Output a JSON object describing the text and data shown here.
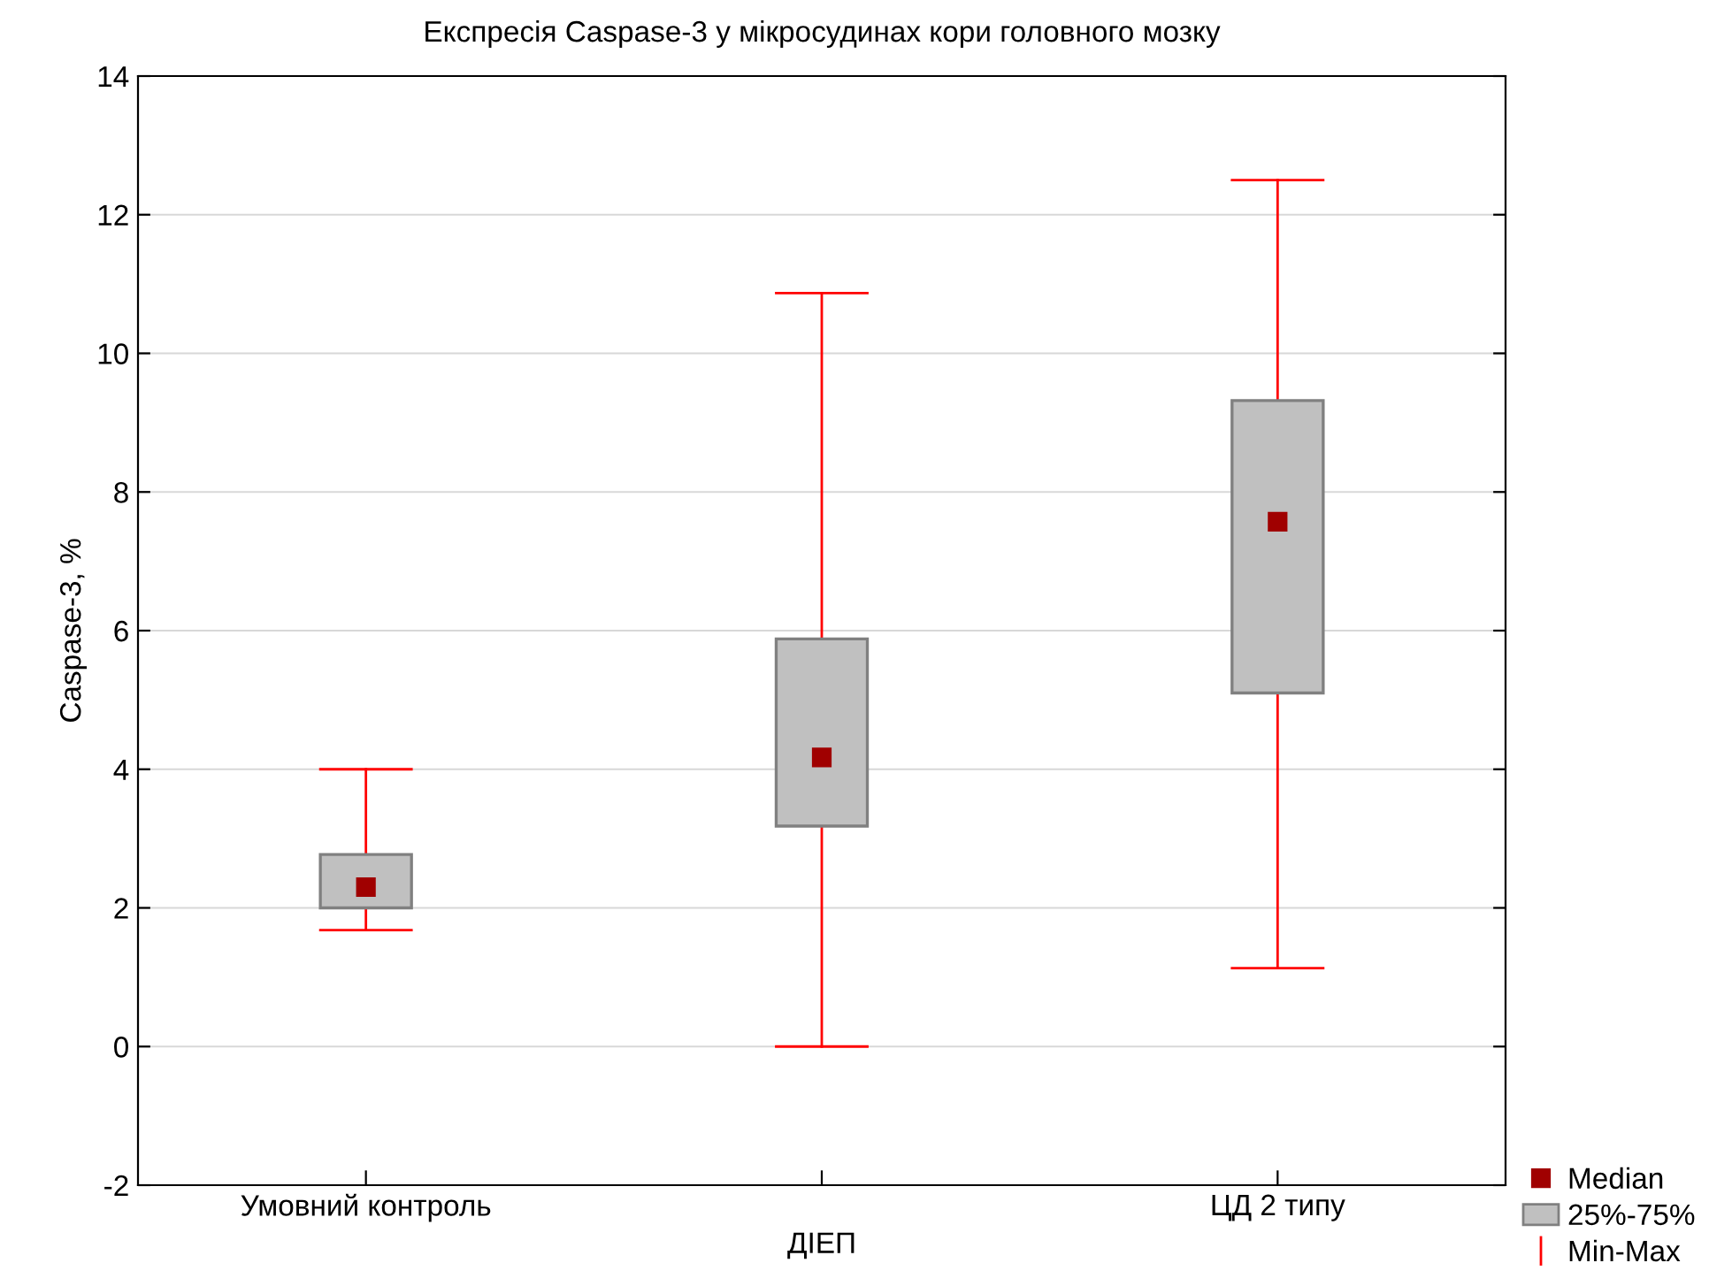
{
  "chart_data": {
    "type": "box",
    "title": "Експресія Caspase-3 у мікросудинах кори головного мозку",
    "xlabel": "ДІЕП",
    "ylabel": "Caspase-3, %",
    "categories": [
      "Умовний контроль",
      null,
      "ЦД 2 типу"
    ],
    "series": [
      {
        "name": "25%-75%",
        "color": "#c0c0c0",
        "boxes": [
          {
            "low": 1.68,
            "q1": 2.0,
            "median": 2.3,
            "q3": 2.77,
            "high": 4.0
          },
          {
            "low": 0.0,
            "q1": 3.18,
            "median": 4.17,
            "q3": 5.88,
            "high": 10.87
          },
          {
            "low": 1.13,
            "q1": 5.1,
            "median": 7.57,
            "q3": 9.32,
            "high": 12.5
          }
        ]
      }
    ],
    "annotations": [
      "Median",
      "Min-Max"
    ],
    "marker": "square",
    "ylim": [
      -2,
      14
    ],
    "yticks": [
      -2,
      0,
      2,
      4,
      6,
      8,
      10,
      12,
      14
    ],
    "grid": "y",
    "legend": "bottom right"
  }
}
